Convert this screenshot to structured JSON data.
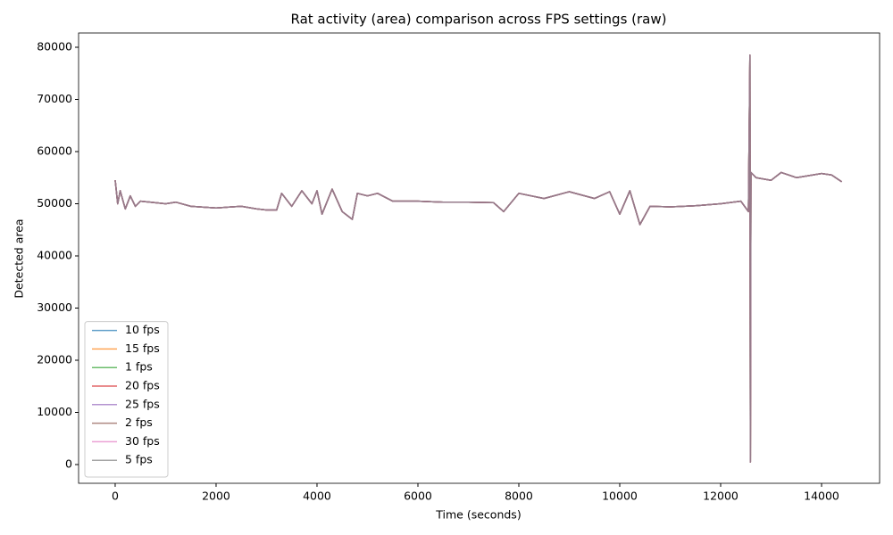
{
  "chart_data": {
    "type": "line",
    "title": "Rat activity (area) comparison across FPS settings (raw)",
    "x_label": "Time (seconds)",
    "y_label": "Detected area",
    "xlim": [
      -725,
      15150
    ],
    "ylim": [
      -3590,
      82735
    ],
    "xticks": [
      0,
      2000,
      4000,
      6000,
      8000,
      10000,
      12000,
      14000
    ],
    "yticks": [
      0,
      10000,
      20000,
      30000,
      40000,
      50000,
      60000,
      70000,
      80000
    ],
    "grid": false,
    "legend": "lower left",
    "x": [
      0,
      50,
      100,
      200,
      300,
      400,
      500,
      700,
      1000,
      1200,
      1500,
      2000,
      2500,
      2800,
      3000,
      3200,
      3300,
      3500,
      3700,
      3900,
      4000,
      4100,
      4300,
      4500,
      4700,
      4800,
      5000,
      5200,
      5500,
      6000,
      6500,
      7000,
      7500,
      7700,
      8000,
      8500,
      9000,
      9500,
      9800,
      10000,
      10200,
      10400,
      10600,
      11000,
      11500,
      12000,
      12400,
      12550,
      12580,
      12590,
      12600,
      12700,
      13000,
      13200,
      13500,
      14000,
      14200,
      14400
    ],
    "series": [
      {
        "name": "10 fps",
        "color": "#1f77b4",
        "values": [
          54500,
          50000,
          52500,
          49000,
          51500,
          49500,
          50500,
          50300,
          50000,
          50300,
          49500,
          49200,
          49500,
          49000,
          48800,
          48800,
          52000,
          49500,
          52500,
          50000,
          52500,
          48000,
          52800,
          48500,
          47000,
          52000,
          51500,
          52000,
          50500,
          50500,
          50300,
          50300,
          50200,
          48500,
          52000,
          51000,
          52300,
          51000,
          52300,
          48000,
          52500,
          46000,
          49500,
          49400,
          49600,
          50000,
          50500,
          48500,
          78500,
          500,
          56000,
          55000,
          54500,
          56000,
          55000,
          55800,
          55500,
          54200
        ]
      },
      {
        "name": "15 fps",
        "color": "#ff7f0e",
        "values": [
          54500,
          50000,
          52500,
          49000,
          51500,
          49500,
          50500,
          50300,
          50000,
          50300,
          49500,
          49200,
          49500,
          49000,
          48800,
          48800,
          52000,
          49500,
          52500,
          50000,
          52500,
          48000,
          52800,
          48500,
          47000,
          52000,
          51500,
          52000,
          50500,
          50500,
          50300,
          50300,
          50200,
          48500,
          52000,
          51000,
          52300,
          51000,
          52300,
          48000,
          52500,
          46000,
          49500,
          49400,
          49600,
          50000,
          50500,
          48500,
          78500,
          500,
          56000,
          55000,
          54500,
          56000,
          55000,
          55800,
          55500,
          54200
        ]
      },
      {
        "name": "1 fps",
        "color": "#2ca02c",
        "values": [
          54500,
          50000,
          52500,
          49000,
          51500,
          49500,
          50500,
          50300,
          50000,
          50300,
          49500,
          49200,
          49500,
          49000,
          48800,
          48800,
          52000,
          49500,
          52500,
          50000,
          52500,
          48000,
          52800,
          48500,
          47000,
          52000,
          51500,
          52000,
          50500,
          50500,
          50300,
          50300,
          50200,
          48500,
          52000,
          51000,
          52300,
          51000,
          52300,
          48000,
          52500,
          46000,
          49500,
          49400,
          49600,
          50000,
          50500,
          48500,
          78500,
          500,
          56000,
          55000,
          54500,
          56000,
          55000,
          55800,
          55500,
          54200
        ]
      },
      {
        "name": "20 fps",
        "color": "#d62728",
        "values": [
          54500,
          50000,
          52500,
          49000,
          51500,
          49500,
          50500,
          50300,
          50000,
          50300,
          49500,
          49200,
          49500,
          49000,
          48800,
          48800,
          52000,
          49500,
          52500,
          50000,
          52500,
          48000,
          52800,
          48500,
          47000,
          52000,
          51500,
          52000,
          50500,
          50500,
          50300,
          50300,
          50200,
          48500,
          52000,
          51000,
          52300,
          51000,
          52300,
          48000,
          52500,
          46000,
          49500,
          49400,
          49600,
          50000,
          50500,
          48500,
          78500,
          500,
          56000,
          55000,
          54500,
          56000,
          55000,
          55800,
          55500,
          54200
        ]
      },
      {
        "name": "25 fps",
        "color": "#9467bd",
        "values": [
          54500,
          50000,
          52500,
          49000,
          51500,
          49500,
          50500,
          50300,
          50000,
          50300,
          49500,
          49200,
          49500,
          49000,
          48800,
          48800,
          52000,
          49500,
          52500,
          50000,
          52500,
          48000,
          52800,
          48500,
          47000,
          52000,
          51500,
          52000,
          50500,
          50500,
          50300,
          50300,
          50200,
          48500,
          52000,
          51000,
          52300,
          51000,
          52300,
          48000,
          52500,
          46000,
          49500,
          49400,
          49600,
          50000,
          50500,
          48500,
          78500,
          500,
          56000,
          55000,
          54500,
          56000,
          55000,
          55800,
          55500,
          54200
        ]
      },
      {
        "name": "2 fps",
        "color": "#8c564b",
        "values": [
          54500,
          50000,
          52500,
          49000,
          51500,
          49500,
          50500,
          50300,
          50000,
          50300,
          49500,
          49200,
          49500,
          49000,
          48800,
          48800,
          52000,
          49500,
          52500,
          50000,
          52500,
          48000,
          52800,
          48500,
          47000,
          52000,
          51500,
          52000,
          50500,
          50500,
          50300,
          50300,
          50200,
          48500,
          52000,
          51000,
          52300,
          51000,
          52300,
          48000,
          52500,
          46000,
          49500,
          49400,
          49600,
          50000,
          50500,
          48500,
          78500,
          500,
          56000,
          55000,
          54500,
          56000,
          55000,
          55800,
          55500,
          54200
        ]
      },
      {
        "name": "30 fps",
        "color": "#e377c2",
        "values": [
          54500,
          50000,
          52500,
          49000,
          51500,
          49500,
          50500,
          50300,
          50000,
          50300,
          49500,
          49200,
          49500,
          49000,
          48800,
          48800,
          52000,
          49500,
          52500,
          50000,
          52500,
          48000,
          52800,
          48500,
          47000,
          52000,
          51500,
          52000,
          50500,
          50500,
          50300,
          50300,
          50200,
          48500,
          52000,
          51000,
          52300,
          51000,
          52300,
          48000,
          52500,
          46000,
          49500,
          49400,
          49600,
          50000,
          50500,
          48500,
          78500,
          500,
          56000,
          55000,
          54500,
          56000,
          55000,
          55800,
          55500,
          54200
        ]
      },
      {
        "name": "5 fps",
        "color": "#7f7f7f",
        "values": [
          54500,
          50000,
          52500,
          49000,
          51500,
          49500,
          50500,
          50300,
          50000,
          50300,
          49500,
          49200,
          49500,
          49000,
          48800,
          48800,
          52000,
          49500,
          52500,
          50000,
          52500,
          48000,
          52800,
          48500,
          47000,
          52000,
          51500,
          52000,
          50500,
          50500,
          50300,
          50300,
          50200,
          48500,
          52000,
          51000,
          52300,
          51000,
          52300,
          48000,
          52500,
          46000,
          49500,
          49400,
          49600,
          50000,
          50500,
          48500,
          78500,
          500,
          56000,
          55000,
          54500,
          56000,
          55000,
          55800,
          55500,
          54200
        ]
      }
    ]
  }
}
